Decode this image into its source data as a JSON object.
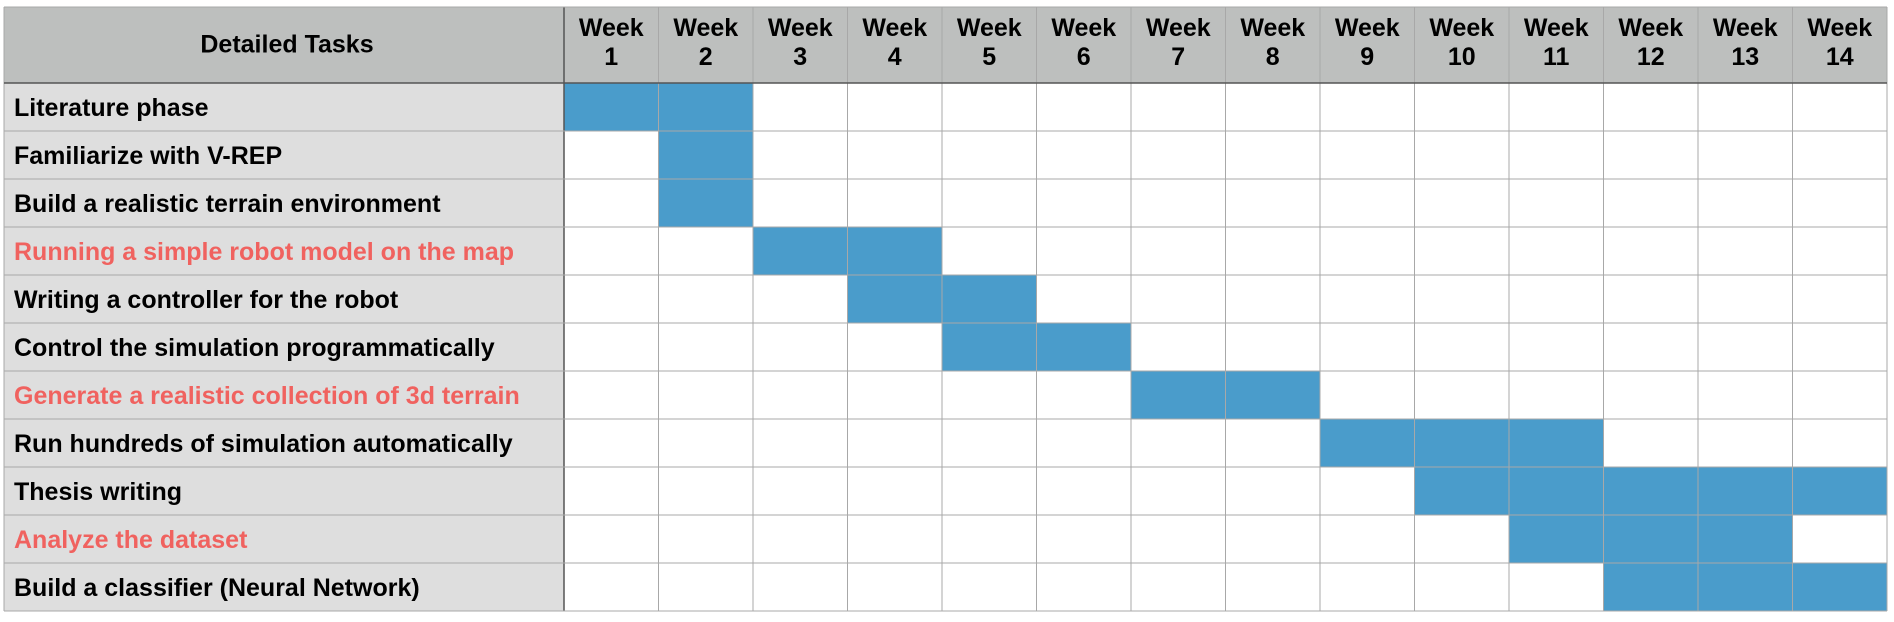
{
  "chart_data": {
    "type": "table",
    "title": "",
    "task_header": "Detailed Tasks",
    "weeks": [
      [
        "Week",
        "1"
      ],
      [
        "Week",
        "2"
      ],
      [
        "Week",
        "3"
      ],
      [
        "Week",
        "4"
      ],
      [
        "Week",
        "5"
      ],
      [
        "Week",
        "6"
      ],
      [
        "Week",
        "7"
      ],
      [
        "Week",
        "8"
      ],
      [
        "Week",
        "9"
      ],
      [
        "Week",
        "10"
      ],
      [
        "Week",
        "11"
      ],
      [
        "Week",
        "12"
      ],
      [
        "Week",
        "13"
      ],
      [
        "Week",
        "14"
      ]
    ],
    "tasks": [
      {
        "name": "Literature phase",
        "highlight": false,
        "start_week": 1,
        "end_week": 2
      },
      {
        "name": "Familiarize with V-REP",
        "highlight": false,
        "start_week": 2,
        "end_week": 2
      },
      {
        "name": "Build a realistic terrain environment",
        "highlight": false,
        "start_week": 2,
        "end_week": 2
      },
      {
        "name": "Running a simple robot model on the map",
        "highlight": true,
        "start_week": 3,
        "end_week": 4
      },
      {
        "name": "Writing a controller for the robot",
        "highlight": false,
        "start_week": 4,
        "end_week": 5
      },
      {
        "name": "Control the simulation programmatically",
        "highlight": false,
        "start_week": 5,
        "end_week": 6
      },
      {
        "name": "Generate a realistic collection of 3d terrain",
        "highlight": true,
        "start_week": 7,
        "end_week": 8
      },
      {
        "name": "Run hundreds of simulation automatically",
        "highlight": false,
        "start_week": 9,
        "end_week": 11
      },
      {
        "name": "Thesis writing",
        "highlight": false,
        "start_week": 10,
        "end_week": 14
      },
      {
        "name": "Analyze the dataset",
        "highlight": true,
        "start_week": 11,
        "end_week": 13
      },
      {
        "name": "Build a classifier (Neural Network)",
        "highlight": false,
        "start_week": 12,
        "end_week": 14
      }
    ]
  },
  "colors": {
    "header_bg": "#bdbfbe",
    "task_bg": "#dedede",
    "bar": "#4a9ccb",
    "grid": "#a8a8a8",
    "text": "#000000",
    "highlight_text": "#f0625f"
  }
}
